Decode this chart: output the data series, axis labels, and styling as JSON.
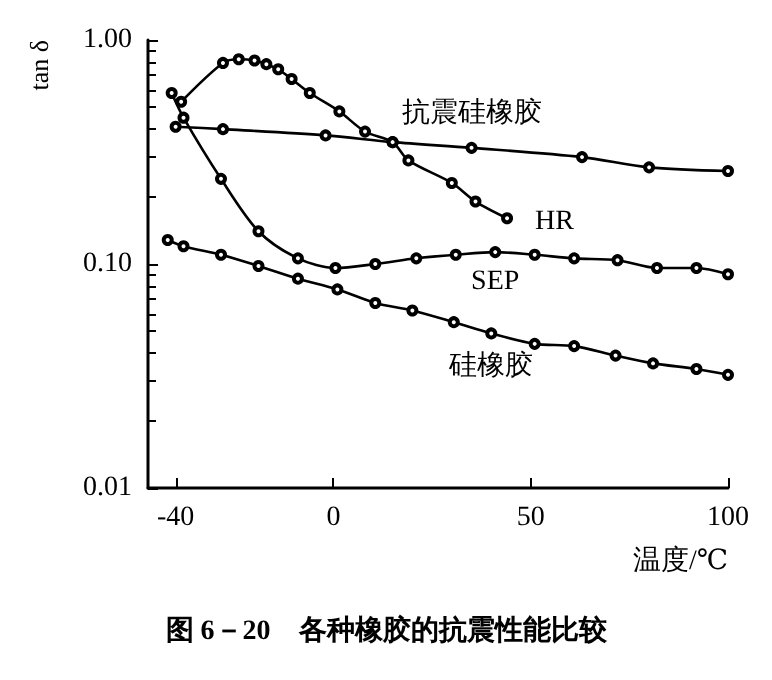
{
  "chart_data": {
    "type": "line",
    "title": "图 6－20　各种橡胶的抗震性能比较",
    "xlabel": "温度/℃",
    "ylabel": "tan δ",
    "log": "y",
    "xlim": [
      -47,
      100
    ],
    "xticks": [
      -40,
      0,
      50,
      100
    ],
    "ylim": [
      0.01,
      1
    ],
    "yticks": [
      {
        "value": 0.01,
        "label": "0.01"
      },
      {
        "value": 0.1,
        "label": "0.10"
      },
      {
        "value": 1,
        "label": "1.00"
      }
    ],
    "grid": false,
    "legend": false,
    "marker": "circle",
    "line_style": "solid",
    "series": [
      {
        "name": "HR",
        "color": "#000000",
        "x": [
          -38.6,
          -28,
          -24,
          -20,
          -17,
          -14,
          -10.6,
          -6,
          1.5,
          8,
          15,
          19,
          30,
          36,
          44
        ],
        "values": [
          0.53,
          0.79,
          0.82,
          0.81,
          0.78,
          0.74,
          0.67,
          0.58,
          0.48,
          0.39,
          0.35,
          0.29,
          0.23,
          0.19,
          0.16
        ]
      },
      {
        "name": "抗震硅橡胶",
        "color": "#000000",
        "x": [
          -40,
          -28,
          -2,
          15,
          35,
          63,
          80,
          100
        ],
        "values": [
          0.41,
          0.4,
          0.375,
          0.35,
          0.33,
          0.3,
          0.27,
          0.26
        ]
      },
      {
        "name": "SEP",
        "color": "#000000",
        "x": [
          -41,
          -38,
          -28.5,
          -19,
          -9,
          0.5,
          10.6,
          21,
          31,
          41,
          51,
          61,
          72,
          82,
          92,
          100
        ],
        "values": [
          0.58,
          0.45,
          0.24,
          0.14,
          0.106,
          0.096,
          0.1,
          0.106,
          0.11,
          0.113,
          0.11,
          0.106,
          0.104,
          0.096,
          0.096,
          0.09
        ]
      },
      {
        "name": "硅橡胶",
        "color": "#000000",
        "x": [
          -42,
          -38,
          -28.5,
          -19,
          -9,
          1,
          10.6,
          20,
          30.5,
          40,
          51,
          61,
          71.5,
          81,
          92,
          100
        ],
        "values": [
          0.128,
          0.12,
          0.11,
          0.098,
          0.086,
          0.077,
          0.067,
          0.062,
          0.055,
          0.049,
          0.044,
          0.043,
          0.039,
          0.036,
          0.034,
          0.032
        ]
      }
    ]
  }
}
